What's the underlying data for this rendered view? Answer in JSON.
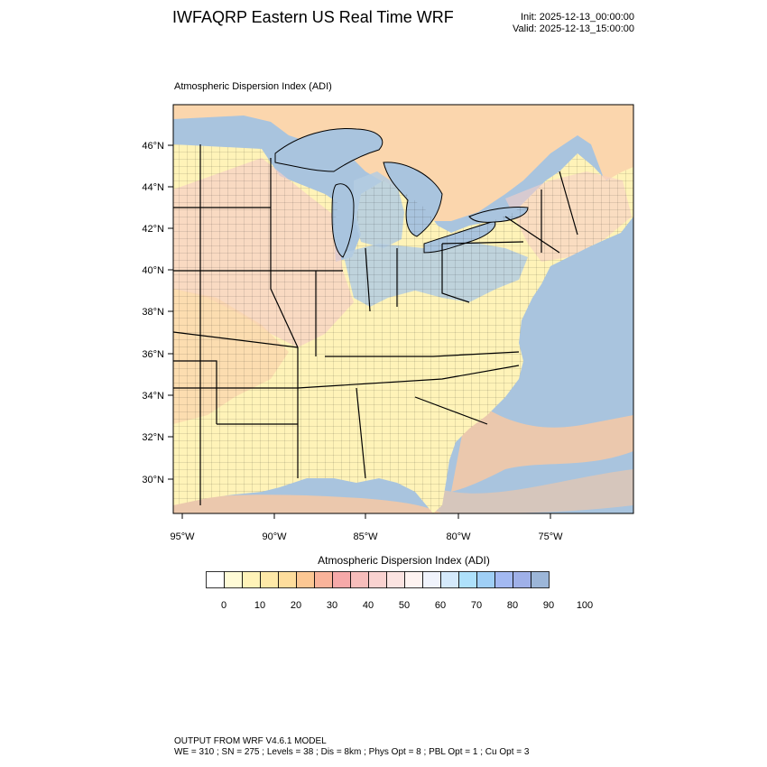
{
  "header": {
    "title": "IWFAQRP Eastern US Real Time WRF",
    "init": "Init: 2025-12-13_00:00:00",
    "valid": "Valid: 2025-12-13_15:00:00"
  },
  "map": {
    "subtitle": "Atmospheric Dispersion Index   (ADI)",
    "lat_labels": [
      "46°N",
      "44°N",
      "42°N",
      "40°N",
      "38°N",
      "36°N",
      "34°N",
      "32°N",
      "30°N"
    ],
    "lon_labels": [
      "95°W",
      "90°W",
      "85°W",
      "80°W",
      "75°W"
    ],
    "colors": {
      "water": "#a9c4de",
      "light_water": "#c3d8ec",
      "land_low": "#fff3b8",
      "land_mid": "#fbd6ad",
      "land_pink": "#f6cfc6",
      "land_blue": "#b4cce2",
      "offshore_orange": "#fbc9a0"
    }
  },
  "colorbar": {
    "title": "Atmospheric Dispersion Index  (ADI)",
    "colors": [
      "#ffffff",
      "#fffbd6",
      "#fff3b8",
      "#fee9a8",
      "#fedd9c",
      "#fcc793",
      "#f9b39a",
      "#f6a9a9",
      "#f7bdbb",
      "#f9d2d0",
      "#fbe3e1",
      "#fef3f1",
      "#f0f3fc",
      "#d4e9fb",
      "#aee1fb",
      "#9fcff6",
      "#a3b9f2",
      "#9fb0e8",
      "#9cb6d8"
    ],
    "tick_labels": [
      "0",
      "10",
      "20",
      "30",
      "40",
      "50",
      "60",
      "70",
      "80",
      "90",
      "100"
    ]
  },
  "footer": {
    "line1": "OUTPUT FROM WRF V4.6.1 MODEL",
    "line2": "WE = 310 ; SN = 275 ; Levels = 38 ; Dis = 8km ; Phys Opt = 8 ; PBL Opt = 1 ; Cu Opt = 3"
  }
}
